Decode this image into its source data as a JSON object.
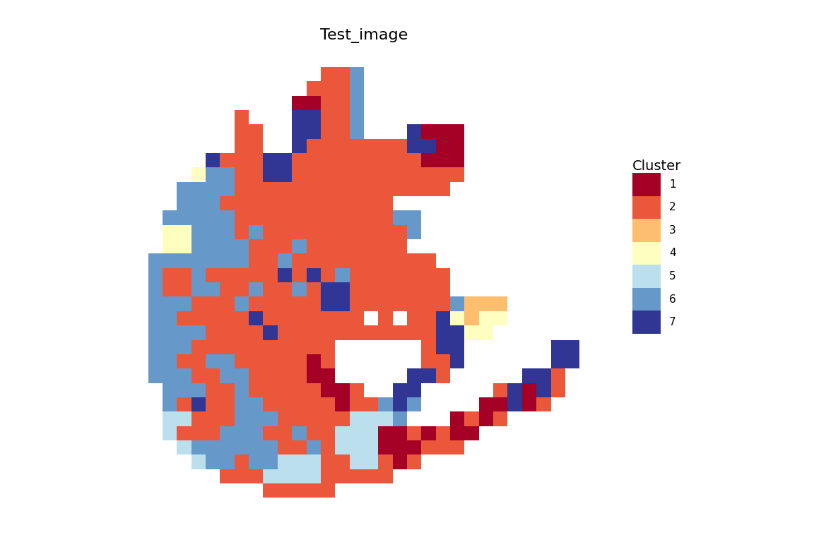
{
  "chart_data": {
    "type": "heatmap",
    "title": "Test_image",
    "legend_title": "Cluster",
    "legend": "right",
    "tick_labels": false,
    "series": [
      {
        "name": "1",
        "color": "#A50026"
      },
      {
        "name": "2",
        "color": "#EA573B"
      },
      {
        "name": "3",
        "color": "#FDBE6F"
      },
      {
        "name": "4",
        "color": "#FEFEC0"
      },
      {
        "name": "5",
        "color": "#BCDFEE"
      },
      {
        "name": "6",
        "color": "#6699C9"
      },
      {
        "name": "7",
        "color": "#313695"
      }
    ],
    "cells": [
      [
        null,
        null,
        null,
        null,
        null,
        null,
        null,
        null,
        null,
        null,
        null,
        null,
        2,
        2,
        6,
        null,
        null,
        null,
        null,
        null,
        null,
        null,
        null,
        null,
        null,
        null,
        null,
        null,
        null,
        null
      ],
      [
        null,
        null,
        null,
        null,
        null,
        null,
        null,
        null,
        null,
        null,
        null,
        2,
        2,
        2,
        6,
        null,
        null,
        null,
        null,
        null,
        null,
        null,
        null,
        null,
        null,
        null,
        null,
        null,
        null,
        null
      ],
      [
        null,
        null,
        null,
        null,
        null,
        null,
        null,
        null,
        null,
        null,
        1,
        1,
        2,
        2,
        6,
        null,
        null,
        null,
        null,
        null,
        null,
        null,
        null,
        null,
        null,
        null,
        null,
        null,
        null,
        null
      ],
      [
        null,
        null,
        null,
        null,
        null,
        null,
        2,
        null,
        null,
        null,
        7,
        7,
        2,
        2,
        6,
        null,
        null,
        null,
        null,
        null,
        null,
        null,
        null,
        null,
        null,
        null,
        null,
        null,
        null,
        null
      ],
      [
        null,
        null,
        null,
        null,
        null,
        null,
        2,
        2,
        null,
        null,
        7,
        7,
        2,
        2,
        6,
        null,
        null,
        null,
        7,
        1,
        1,
        1,
        null,
        null,
        null,
        null,
        null,
        null,
        null,
        null
      ],
      [
        null,
        null,
        null,
        null,
        null,
        null,
        2,
        2,
        null,
        null,
        7,
        2,
        2,
        2,
        2,
        2,
        2,
        2,
        7,
        7,
        1,
        1,
        null,
        null,
        null,
        null,
        null,
        null,
        null,
        null
      ],
      [
        null,
        null,
        null,
        null,
        7,
        2,
        2,
        2,
        7,
        7,
        2,
        2,
        2,
        2,
        2,
        2,
        2,
        2,
        2,
        1,
        1,
        1,
        null,
        null,
        null,
        null,
        null,
        null,
        null,
        null
      ],
      [
        null,
        null,
        null,
        4,
        6,
        6,
        2,
        2,
        7,
        7,
        2,
        2,
        2,
        2,
        2,
        2,
        2,
        2,
        2,
        2,
        2,
        2,
        null,
        null,
        null,
        null,
        null,
        null,
        null,
        null
      ],
      [
        null,
        null,
        6,
        6,
        6,
        6,
        2,
        2,
        2,
        2,
        2,
        2,
        2,
        2,
        2,
        2,
        2,
        2,
        2,
        2,
        2,
        null,
        null,
        null,
        null,
        null,
        null,
        null,
        null,
        null
      ],
      [
        null,
        null,
        6,
        6,
        6,
        2,
        2,
        2,
        2,
        2,
        2,
        2,
        2,
        2,
        2,
        2,
        2,
        null,
        null,
        null,
        null,
        null,
        null,
        null,
        null,
        null,
        null,
        null,
        null,
        null
      ],
      [
        null,
        6,
        6,
        6,
        6,
        6,
        2,
        2,
        2,
        2,
        2,
        2,
        2,
        2,
        2,
        2,
        2,
        6,
        6,
        null,
        null,
        null,
        null,
        null,
        null,
        null,
        null,
        null,
        null,
        null
      ],
      [
        null,
        4,
        4,
        6,
        6,
        6,
        2,
        6,
        2,
        2,
        2,
        2,
        2,
        2,
        2,
        2,
        2,
        2,
        6,
        null,
        null,
        null,
        null,
        null,
        null,
        null,
        null,
        null,
        null,
        null
      ],
      [
        null,
        4,
        4,
        6,
        6,
        6,
        6,
        2,
        2,
        2,
        6,
        2,
        2,
        2,
        2,
        2,
        2,
        2,
        null,
        null,
        null,
        null,
        null,
        null,
        null,
        null,
        null,
        null,
        null,
        null
      ],
      [
        6,
        6,
        6,
        6,
        6,
        6,
        6,
        2,
        2,
        6,
        2,
        2,
        2,
        2,
        2,
        2,
        2,
        2,
        2,
        2,
        null,
        null,
        null,
        null,
        null,
        null,
        null,
        null,
        null,
        null
      ],
      [
        6,
        2,
        2,
        6,
        2,
        2,
        2,
        2,
        2,
        7,
        2,
        7,
        2,
        6,
        2,
        2,
        2,
        2,
        2,
        2,
        2,
        null,
        null,
        null,
        null,
        null,
        null,
        null,
        null,
        null
      ],
      [
        6,
        2,
        2,
        6,
        6,
        2,
        2,
        6,
        2,
        2,
        6,
        2,
        7,
        7,
        2,
        2,
        2,
        2,
        2,
        2,
        2,
        null,
        null,
        null,
        null,
        null,
        null,
        null,
        null,
        null
      ],
      [
        6,
        6,
        6,
        2,
        2,
        2,
        6,
        2,
        2,
        2,
        2,
        2,
        7,
        7,
        2,
        2,
        2,
        2,
        2,
        2,
        2,
        6,
        3,
        3,
        3,
        null,
        null,
        null,
        null,
        null
      ],
      [
        6,
        6,
        2,
        2,
        2,
        2,
        2,
        7,
        2,
        2,
        2,
        2,
        2,
        2,
        2,
        null,
        2,
        null,
        2,
        2,
        7,
        4,
        3,
        4,
        4,
        null,
        null,
        null,
        null,
        null
      ],
      [
        6,
        6,
        6,
        6,
        2,
        2,
        2,
        2,
        7,
        2,
        2,
        2,
        2,
        2,
        2,
        2,
        2,
        2,
        2,
        2,
        7,
        7,
        4,
        4,
        null,
        null,
        null,
        null,
        null,
        null
      ],
      [
        6,
        6,
        6,
        2,
        2,
        2,
        2,
        2,
        2,
        2,
        2,
        2,
        2,
        null,
        null,
        null,
        null,
        null,
        null,
        2,
        7,
        7,
        null,
        null,
        null,
        null,
        null,
        null,
        7,
        7
      ],
      [
        6,
        6,
        2,
        2,
        6,
        6,
        2,
        2,
        2,
        2,
        2,
        1,
        2,
        null,
        null,
        null,
        null,
        null,
        null,
        2,
        2,
        7,
        null,
        null,
        null,
        null,
        null,
        null,
        7,
        7
      ],
      [
        6,
        6,
        6,
        2,
        2,
        6,
        6,
        2,
        2,
        2,
        2,
        1,
        1,
        null,
        null,
        null,
        null,
        null,
        7,
        7,
        2,
        null,
        null,
        null,
        null,
        null,
        7,
        7,
        2,
        null
      ],
      [
        null,
        6,
        6,
        6,
        2,
        2,
        6,
        2,
        2,
        2,
        2,
        2,
        1,
        1,
        2,
        null,
        null,
        7,
        7,
        null,
        null,
        null,
        null,
        null,
        2,
        7,
        1,
        7,
        2,
        null
      ],
      [
        null,
        6,
        2,
        7,
        2,
        2,
        6,
        6,
        2,
        2,
        2,
        2,
        2,
        1,
        2,
        2,
        6,
        7,
        6,
        null,
        null,
        null,
        null,
        1,
        1,
        7,
        1,
        2,
        null,
        null
      ],
      [
        null,
        5,
        5,
        2,
        2,
        2,
        6,
        6,
        6,
        2,
        2,
        2,
        2,
        2,
        5,
        5,
        5,
        6,
        null,
        null,
        null,
        1,
        2,
        1,
        2,
        null,
        null,
        null,
        null,
        null
      ],
      [
        null,
        5,
        2,
        2,
        2,
        6,
        6,
        6,
        2,
        2,
        6,
        2,
        2,
        5,
        5,
        5,
        1,
        1,
        2,
        1,
        2,
        1,
        1,
        null,
        null,
        null,
        null,
        null,
        null,
        null
      ],
      [
        null,
        null,
        5,
        6,
        6,
        6,
        6,
        6,
        6,
        2,
        2,
        6,
        2,
        5,
        5,
        5,
        1,
        1,
        1,
        2,
        2,
        2,
        null,
        null,
        null,
        null,
        null,
        null,
        null,
        null
      ],
      [
        null,
        null,
        null,
        5,
        6,
        6,
        2,
        6,
        6,
        5,
        5,
        5,
        2,
        2,
        5,
        5,
        2,
        1,
        2,
        null,
        null,
        null,
        null,
        null,
        null,
        null,
        null,
        null,
        null,
        null
      ],
      [
        null,
        null,
        null,
        null,
        null,
        2,
        2,
        2,
        5,
        5,
        5,
        5,
        2,
        2,
        2,
        2,
        2,
        null,
        null,
        null,
        null,
        null,
        null,
        null,
        null,
        null,
        null,
        null,
        null,
        null
      ],
      [
        null,
        null,
        null,
        null,
        null,
        null,
        null,
        null,
        2,
        2,
        2,
        2,
        2,
        null,
        null,
        null,
        null,
        null,
        null,
        null,
        null,
        null,
        null,
        null,
        null,
        null,
        null,
        null,
        null,
        null
      ]
    ]
  }
}
